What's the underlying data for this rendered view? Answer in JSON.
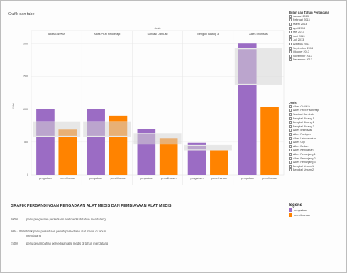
{
  "app": {
    "title": "Grafik dan tabel"
  },
  "chart_data": {
    "type": "bar",
    "column_header": "Jenis",
    "categories": [
      "Alkes Gizi/KIA",
      "Alkes PKM Fisioterapi",
      "Sanitasi Dan Lab",
      "Bengkel Bidang 3",
      "Alkes Imunisasi"
    ],
    "series": [
      {
        "name": "pengadaan",
        "color": "#9b6cc4",
        "values": [
          1000,
          1000,
          700,
          490,
          2000
        ]
      },
      {
        "name": "pemeliharaan",
        "color": "#ff8300",
        "values": [
          690,
          900,
          560,
          380,
          1030
        ]
      }
    ],
    "reference_band_lo": [
      590,
      590,
      470,
      380,
      1380
    ],
    "reference_band_hi": [
      810,
      810,
      630,
      450,
      1920
    ],
    "ylim": [
      0,
      2100
    ],
    "yticks": [
      0,
      500,
      1000,
      1500,
      2000
    ],
    "ylabel": "Nilai",
    "grid": true,
    "highlighted_bar_labels": [
      "pengadaan",
      "alat medis"
    ]
  },
  "filters": {
    "month": {
      "title": "Bulan dan Tahun Pengadaan",
      "items": [
        "Januari 2013",
        "Februari 2013",
        "Maret 2013",
        "April 2013",
        "Mei 2013",
        "Juni 2013",
        "Juli 2013",
        "Agustus 2013",
        "September 2013",
        "Oktober 2013",
        "November 2013",
        "Desember 2013"
      ]
    },
    "jenis": {
      "title": "Jenis",
      "items": [
        "Alkes Gizi/KIA",
        "Alkes PKM Fisioterapi",
        "Sanitasi Dan Lab",
        "Bengkel Bidang 1",
        "Bengkel Bidang 2",
        "Bengkel Bidang 3",
        "Alkes Imunisasi",
        "Alkes Rontgen",
        "Alkes Laboratorium",
        "Alkes Gigi",
        "Alkes Bedah",
        "Alkes Kebidanan",
        "Alkes Penunjang 1",
        "Alkes Penunjang 2",
        "Alkes Penunjang 3",
        "Bengkel Umum 1",
        "Bengkel Umum 2"
      ]
    }
  },
  "legend": {
    "title": "legend",
    "items": [
      {
        "label": "pengadaan",
        "color": "#9b6cc4"
      },
      {
        "label": "pemeliharaan",
        "color": "#ff8300"
      }
    ]
  },
  "notes": {
    "title": "GRAFIK PERBANDINGAN PENGADAAN ALAT MEDIS DAN PEMBIAYAAN ALAT MEDIS",
    "rows": [
      {
        "key": "100%",
        "text": "perlu pengadaan persediaan alat medis di tahun mendatang"
      },
      {
        "key": "50% - 99 %",
        "text": "tidak perlu persediaan penuh persediaan alat medis di tahun mendatang"
      },
      {
        "key": "<50%",
        "text": "perlu penambahan persediaan alat medis di tahun mendatang"
      }
    ]
  }
}
